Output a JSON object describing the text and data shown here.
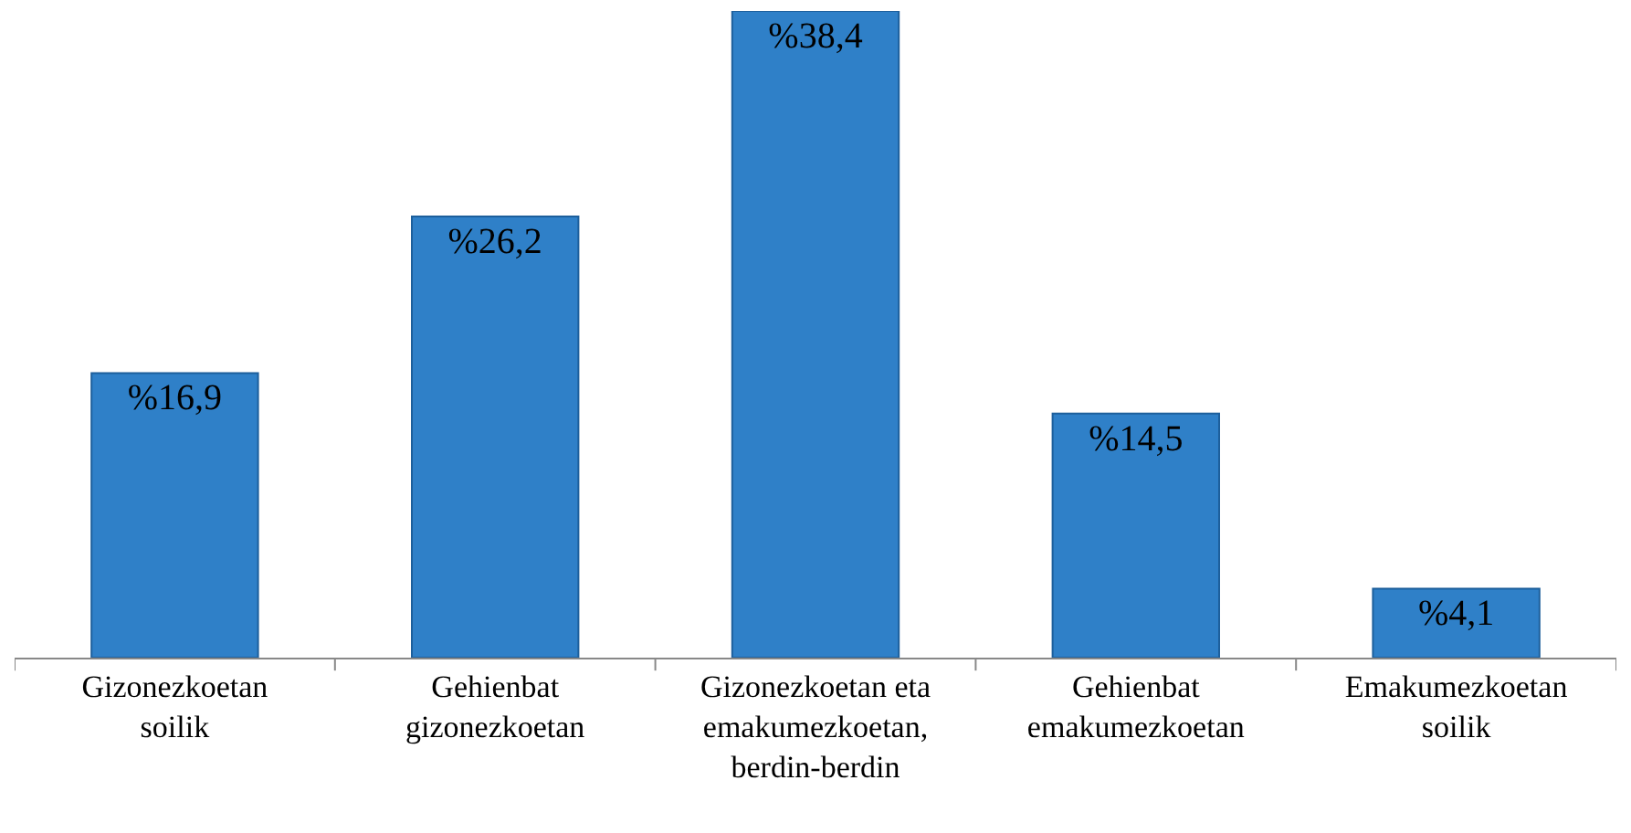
{
  "chart_data": {
    "type": "bar",
    "categories": [
      "Gizonezkoetan\nsoilik",
      "Gehienbat\ngizonezkoetan",
      "Gizonezkoetan eta\nemakumezkoetan,\nberdin-berdin",
      "Gehienbat\nemakumezkoetan",
      "Emakumezkoetan\nsoilik"
    ],
    "values": [
      16.9,
      26.2,
      38.4,
      14.5,
      4.1
    ],
    "value_labels": [
      "%16,9",
      "%26,2",
      "%38,4",
      "%14,5",
      "%4,1"
    ],
    "color": "#2f80c8"
  }
}
